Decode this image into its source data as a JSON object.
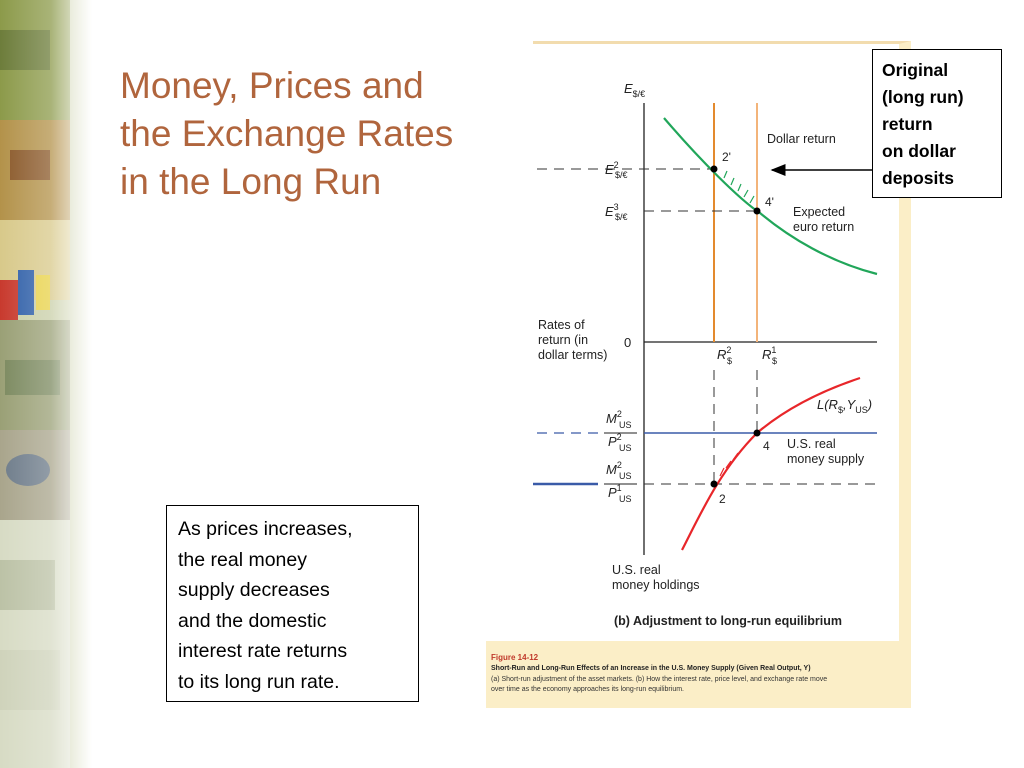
{
  "slide": {
    "title_lines": [
      "Money, Prices and",
      "the Exchange Rates",
      "in the Long Run"
    ],
    "callout_right_lines": [
      "Original",
      "(long run)",
      "return",
      "on dollar",
      "deposits"
    ],
    "callout_left_lines": [
      "As prices increases,",
      "the real money",
      "supply decreases",
      "and the domestic",
      "interest rate returns",
      "to its long run rate."
    ]
  },
  "figure": {
    "top_axis_label": "E",
    "top_axis_sub": "$/€",
    "e2_label": "E",
    "e2_sup": "2",
    "e2_sub": "$/€",
    "e3_label": "E",
    "e3_sup": "3",
    "e3_sub": "$/€",
    "point_2prime": "2'",
    "point_4prime": "4'",
    "dollar_return": "Dollar return",
    "expected_euro_return_lines": [
      "Expected",
      "euro return"
    ],
    "rates_of_return_lines": [
      "Rates of",
      "return (in",
      "dollar terms)"
    ],
    "zero_label": "0",
    "r2_label": "R",
    "r2_sup": "2",
    "r2_sub": "$",
    "r1_label": "R",
    "r1_sup": "1",
    "r1_sub": "$",
    "l_func_prefix": "L(R",
    "l_func_sub1": "$",
    "l_func_mid": ",Y",
    "l_func_sub2": "US",
    "l_func_suffix": ")",
    "m_top1": "M",
    "m_top1_sup": "2",
    "m_top1_sub": "US",
    "p_bot1": "P",
    "p_bot1_sup": "2",
    "p_bot1_sub": "US",
    "m_top2": "M",
    "m_top2_sup": "2",
    "m_top2_sub": "US",
    "p_bot2": "P",
    "p_bot2_sup": "1",
    "p_bot2_sub": "US",
    "point_4": "4",
    "point_2": "2",
    "us_real_supply_lines": [
      "U.S. real",
      "money supply"
    ],
    "us_real_holdings_lines": [
      "U.S. real",
      "money holdings"
    ],
    "panel_caption": "(b) Adjustment to long-run equilibrium",
    "caption_fignum": "Figure 14-12",
    "caption_title": "Short-Run and Long-Run Effects of an Increase in the U.S. Money Supply (Given Real Output, Y)",
    "caption_desc_lines": [
      "(a) Short-run adjustment of the asset markets. (b) How the interest rate, price level, and exchange rate move",
      "over time as the economy approaches its long-run equilibrium."
    ]
  },
  "colors": {
    "title": "#b0653d",
    "green_curve": "#21a65a",
    "red_curve": "#e8262a",
    "orange_line": "#e38a2e",
    "blue_line": "#3a5ba8",
    "panel_border": "#fbeec7",
    "caption_red": "#c0392b"
  }
}
